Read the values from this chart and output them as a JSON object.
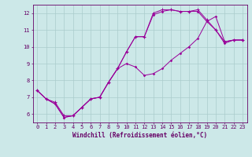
{
  "xlabel": "Windchill (Refroidissement éolien,°C)",
  "ylabel": "",
  "background_color": "#cce8e8",
  "line_color": "#990099",
  "grid_color": "#aacccc",
  "axis_color": "#660066",
  "xlim": [
    -0.5,
    23.5
  ],
  "ylim": [
    5.5,
    12.5
  ],
  "xticks": [
    0,
    1,
    2,
    3,
    4,
    5,
    6,
    7,
    8,
    9,
    10,
    11,
    12,
    13,
    14,
    15,
    16,
    17,
    18,
    19,
    20,
    21,
    22,
    23
  ],
  "yticks": [
    6,
    7,
    8,
    9,
    10,
    11,
    12
  ],
  "series1_x": [
    0,
    1,
    2,
    3,
    4,
    5,
    6,
    7,
    8,
    9,
    10,
    11,
    12,
    13,
    14,
    15,
    16,
    17,
    18,
    19,
    20,
    21,
    22,
    23
  ],
  "series1_y": [
    7.4,
    6.9,
    6.6,
    5.8,
    5.9,
    6.4,
    6.9,
    7.0,
    7.9,
    8.7,
    9.7,
    10.6,
    10.6,
    11.9,
    12.1,
    12.2,
    12.1,
    12.1,
    12.1,
    11.5,
    11.0,
    10.2,
    10.4,
    10.4
  ],
  "series2_x": [
    0,
    1,
    2,
    3,
    4,
    5,
    6,
    7,
    8,
    9,
    10,
    11,
    12,
    13,
    14,
    15,
    16,
    17,
    18,
    19,
    20,
    21,
    22,
    23
  ],
  "series2_y": [
    7.4,
    6.9,
    6.7,
    5.9,
    5.9,
    6.4,
    6.9,
    7.0,
    7.9,
    8.7,
    9.7,
    10.6,
    10.6,
    12.0,
    12.2,
    12.2,
    12.1,
    12.1,
    12.2,
    11.6,
    11.0,
    10.3,
    10.4,
    10.4
  ],
  "series3_x": [
    0,
    1,
    2,
    3,
    4,
    5,
    6,
    7,
    8,
    9,
    10,
    11,
    12,
    13,
    14,
    15,
    16,
    17,
    18,
    19,
    20,
    21,
    22,
    23
  ],
  "series3_y": [
    7.4,
    6.9,
    6.6,
    5.8,
    5.9,
    6.4,
    6.9,
    7.0,
    7.9,
    8.7,
    9.0,
    8.8,
    8.3,
    8.4,
    8.7,
    9.2,
    9.6,
    10.0,
    10.5,
    11.5,
    11.8,
    10.3,
    10.4,
    10.4
  ]
}
